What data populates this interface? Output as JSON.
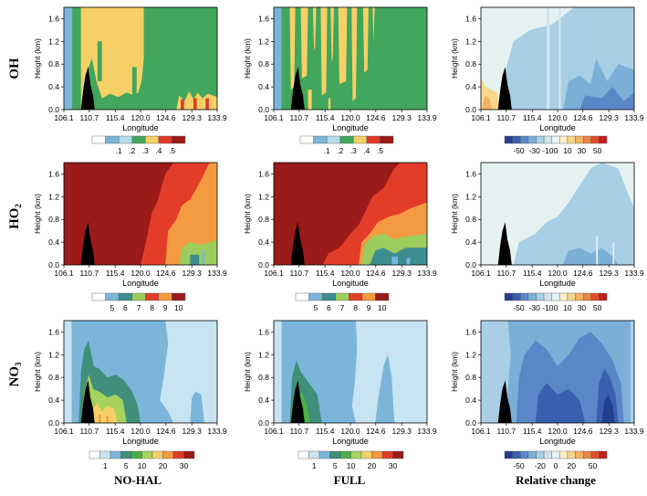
{
  "rows": [
    {
      "label": "OH",
      "sub": ""
    },
    {
      "label": "HO",
      "sub": "2"
    },
    {
      "label": "NO",
      "sub": "3"
    }
  ],
  "columns": [
    "NO-HAL",
    "FULL",
    "Relative change"
  ],
  "axes": {
    "ylabel": "Height (km)",
    "xlabel": "Longitude",
    "yticks": [
      "0.0",
      "0.4",
      "0.8",
      "1.2",
      "1.6"
    ],
    "xticks": [
      "106.1",
      "110.7",
      "115.4",
      "120.0",
      "124.6",
      "129.3",
      "133.9"
    ],
    "ylim": [
      0,
      1.8
    ],
    "xlim": [
      106.1,
      133.9
    ]
  },
  "legends": {
    "oh": {
      "colors": [
        "#ffffff",
        "#7bb6da",
        "#b7dbea",
        "#42a65c",
        "#f6d066",
        "#e03a2a",
        "#9b1a1a"
      ],
      "labels": [
        ".1",
        ".2",
        ".3",
        ".4",
        ".5"
      ]
    },
    "ho2": {
      "colors": [
        "#ffffff",
        "#7bb6da",
        "#3d8f8f",
        "#9ccc5d",
        "#e33d2a",
        "#f49a40",
        "#9b1a1a"
      ],
      "labels": [
        "5",
        "6",
        "7",
        "8",
        "9",
        "10"
      ]
    },
    "no3": {
      "colors": [
        "#ffffff",
        "#c8e4f2",
        "#7bb6da",
        "#3f8f7a",
        "#4caf4a",
        "#a5d35e",
        "#f6d066",
        "#f49a40",
        "#e03a2a",
        "#9b1a1a"
      ],
      "labels": [
        "1",
        "5",
        "10",
        "20",
        "30"
      ]
    },
    "rel": {
      "colors": [
        "#243f8f",
        "#3b5fb0",
        "#5b87c8",
        "#7bafd8",
        "#a8cfe5",
        "#cfe6ef",
        "#e6f2f1",
        "#fdf0c6",
        "#f9d68c",
        "#f5b263",
        "#ee8540",
        "#df4e2b",
        "#c21e1e"
      ],
      "labels": [
        "-50",
        "-30",
        "-10",
        "0",
        "10",
        "30",
        "50"
      ],
      "labels_alt": [
        "-50",
        "-20",
        "0",
        "20",
        "50"
      ]
    }
  },
  "chart_data": [
    {
      "type": "filled-contour",
      "panel": "OH NO-HAL",
      "title": "",
      "xlabel": "Longitude",
      "ylabel": "Height (km)",
      "ylim": [
        0,
        1.8
      ],
      "xlim": [
        106.1,
        133.9
      ],
      "regions": [
        {
          "level": ".1",
          "color": "#7bb6da",
          "x": [
            106.1,
            107.5
          ]
        },
        {
          "level": ".3",
          "color": "#42a65c",
          "x": [
            107.5,
            133.9
          ],
          "note": "dominant background"
        },
        {
          "level": ".4",
          "color": "#f6d066",
          "x": [
            109.2,
            120.5
          ],
          "y": [
            0,
            1.8
          ]
        },
        {
          "level": ".5",
          "color": "#e03a2a",
          "x": [
            126.5,
            133.9
          ],
          "y": [
            0,
            0.3
          ]
        }
      ]
    },
    {
      "type": "filled-contour",
      "panel": "OH FULL",
      "xlabel": "Longitude",
      "ylabel": "Height (km)",
      "ylim": [
        0,
        1.8
      ],
      "xlim": [
        106.1,
        133.9
      ],
      "regions": [
        {
          "level": ".1",
          "color": "#7bb6da",
          "x": [
            106.1,
            107.5
          ]
        },
        {
          "level": ".3",
          "color": "#42a65c",
          "x": [
            107.5,
            133.9
          ],
          "note": "dominant background"
        },
        {
          "level": ".4",
          "color": "#f6d066",
          "x": [
            109.0,
            123.5
          ],
          "note": "vertical streaks"
        }
      ]
    },
    {
      "type": "filled-contour",
      "panel": "OH Relative change",
      "xlabel": "Longitude",
      "ylabel": "Height (km)",
      "ylim": [
        0,
        1.8
      ],
      "xlim": [
        106.1,
        133.9
      ],
      "regions": [
        {
          "level": "0",
          "color": "#e6f2f1",
          "note": "background"
        },
        {
          "level": "-10",
          "color": "#a8cfe5",
          "x": [
            110.0,
            133.9
          ]
        },
        {
          "level": "-30",
          "color": "#7bafd8",
          "x": [
            122.0,
            133.9
          ],
          "y": [
            0,
            0.6
          ]
        },
        {
          "level": "10",
          "color": "#f9d68c",
          "x": [
            106.1,
            109.5
          ],
          "y": [
            0,
            0.3
          ]
        }
      ]
    },
    {
      "type": "filled-contour",
      "panel": "HO2 NO-HAL",
      "xlabel": "Longitude",
      "ylabel": "Height (km)",
      "ylim": [
        0,
        1.8
      ],
      "xlim": [
        106.1,
        133.9
      ],
      "regions": [
        {
          "level": "10",
          "color": "#9b1a1a",
          "x": [
            106.1,
            124.0
          ]
        },
        {
          "level": "9",
          "color": "#e33d2a",
          "x": [
            122.0,
            131.5
          ]
        },
        {
          "level": "8",
          "color": "#f49a40",
          "x": [
            125.5,
            133.9
          ]
        },
        {
          "level": "7",
          "color": "#9ccc5d",
          "x": [
            127.0,
            133.9
          ],
          "y": [
            0,
            0.4
          ]
        },
        {
          "level": "6",
          "color": "#3d8f8f",
          "x": [
            129.0,
            132.0
          ],
          "y": [
            0,
            0.2
          ]
        }
      ]
    },
    {
      "type": "filled-contour",
      "panel": "HO2 FULL",
      "xlabel": "Longitude",
      "ylabel": "Height (km)",
      "ylim": [
        0,
        1.8
      ],
      "xlim": [
        106.1,
        133.9
      ],
      "regions": [
        {
          "level": "10",
          "color": "#9b1a1a",
          "x": [
            106.1,
            122.0
          ]
        },
        {
          "level": "9",
          "color": "#e33d2a",
          "x": [
            119.0,
            130.0
          ]
        },
        {
          "level": "8",
          "color": "#f49a40",
          "x": [
            124.0,
            133.9
          ]
        },
        {
          "level": "7",
          "color": "#9ccc5d",
          "x": [
            122.0,
            133.9
          ],
          "y": [
            0,
            0.6
          ]
        },
        {
          "level": "6",
          "color": "#3d8f8f",
          "x": [
            123.5,
            133.9
          ],
          "y": [
            0,
            0.35
          ]
        },
        {
          "level": "5",
          "color": "#7bb6da",
          "x": [
            127.5,
            131.0
          ],
          "y": [
            0,
            0.15
          ]
        }
      ]
    },
    {
      "type": "filled-contour",
      "panel": "HO2 Relative change",
      "xlabel": "Longitude",
      "ylabel": "Height (km)",
      "ylim": [
        0,
        1.8
      ],
      "xlim": [
        106.1,
        133.9
      ],
      "regions": [
        {
          "level": "0",
          "color": "#e6f2f1",
          "note": "background"
        },
        {
          "level": "-10",
          "color": "#a8cfe5",
          "x": [
            112.0,
            133.9
          ]
        },
        {
          "level": "-30",
          "color": "#7bafd8",
          "x": [
            122.0,
            131.0
          ],
          "y": [
            0,
            0.3
          ]
        }
      ]
    },
    {
      "type": "filled-contour",
      "panel": "NO3 NO-HAL",
      "xlabel": "Longitude",
      "ylabel": "Height (km)",
      "ylim": [
        0,
        1.8
      ],
      "xlim": [
        106.1,
        133.9
      ],
      "regions": [
        {
          "level": "1",
          "color": "#c8e4f2",
          "note": "background"
        },
        {
          "level": "5",
          "color": "#7bb6da",
          "x": [
            107.5,
            125.0
          ]
        },
        {
          "level": "10",
          "color": "#3f8f7a",
          "x": [
            109.0,
            118.0
          ],
          "y": [
            0,
            1.3
          ]
        },
        {
          "level": "20",
          "color": "#a5d35e",
          "x": [
            109.5,
            117.0
          ],
          "y": [
            0,
            0.6
          ]
        },
        {
          "level": "30",
          "color": "#f6d066",
          "x": [
            110.0,
            115.0
          ],
          "y": [
            0,
            0.25
          ]
        }
      ]
    },
    {
      "type": "filled-contour",
      "panel": "NO3 FULL",
      "xlabel": "Longitude",
      "ylabel": "Height (km)",
      "ylim": [
        0,
        1.8
      ],
      "xlim": [
        106.1,
        133.9
      ],
      "regions": [
        {
          "level": "1",
          "color": "#c8e4f2",
          "note": "background"
        },
        {
          "level": "5",
          "color": "#7bb6da",
          "x": [
            107.5,
            121.0
          ]
        },
        {
          "level": "10",
          "color": "#3f8f7a",
          "x": [
            109.0,
            114.5
          ],
          "y": [
            0,
            1.1
          ]
        },
        {
          "level": "20",
          "color": "#4caf4a",
          "x": [
            110.0,
            113.0
          ],
          "y": [
            0,
            0.4
          ]
        }
      ]
    },
    {
      "type": "filled-contour",
      "panel": "NO3 Relative change",
      "xlabel": "Longitude",
      "ylabel": "Height (km)",
      "ylim": [
        0,
        1.8
      ],
      "xlim": [
        106.1,
        133.9
      ],
      "regions": [
        {
          "level": "-10",
          "color": "#a8cfe5",
          "x": [
            106.1,
            112.0
          ]
        },
        {
          "level": "-30",
          "color": "#7bafd8",
          "note": "background"
        },
        {
          "level": "-50",
          "color": "#5b87c8",
          "x": [
            113.0,
            131.0
          ]
        },
        {
          "level": "-50",
          "color": "#3b5fb0",
          "x": [
            127.0,
            131.0
          ],
          "y": [
            0,
            1.0
          ]
        }
      ]
    }
  ]
}
